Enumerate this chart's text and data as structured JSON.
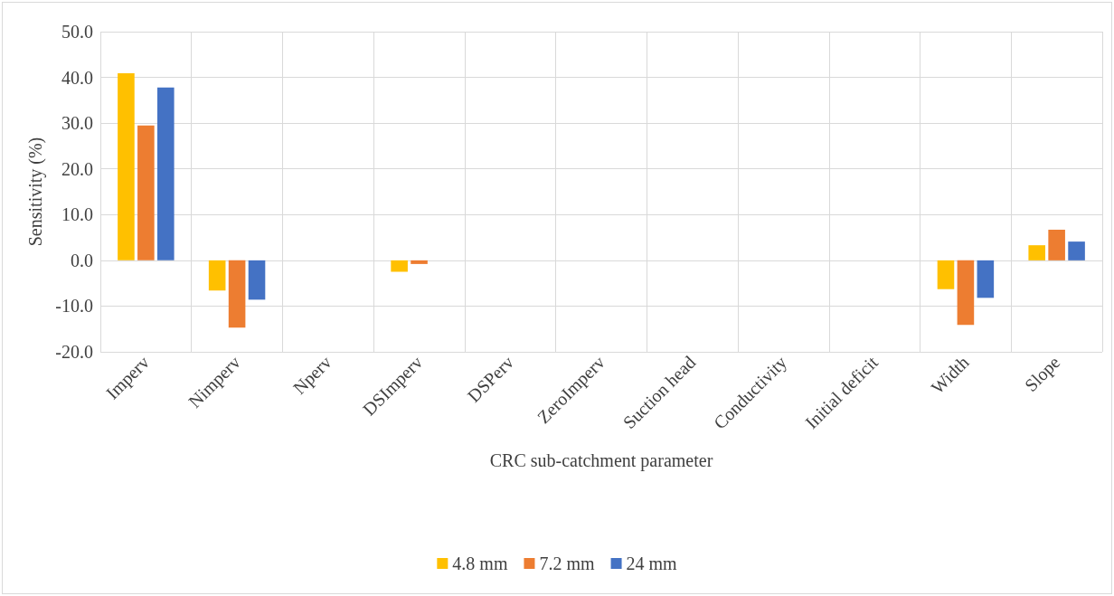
{
  "chart_data": {
    "type": "bar",
    "xlabel": "CRC sub-catchment parameter",
    "ylabel": "Sensitivity (%)",
    "categories": [
      "Imperv",
      "Nimperv",
      "Nperv",
      "DSImperv",
      "DSPerv",
      "ZeroImperv",
      "Suction head",
      "Conductivity",
      "Initial deficit",
      "Width",
      "Slope"
    ],
    "series": [
      {
        "name": "4.8 mm",
        "color": "#ffc000",
        "values": [
          40.9,
          -6.6,
          0,
          -2.5,
          0,
          0,
          0,
          0,
          0,
          -6.3,
          3.3
        ]
      },
      {
        "name": "7.2 mm",
        "color": "#ed7d31",
        "values": [
          29.5,
          -14.7,
          0,
          -0.8,
          0,
          0,
          0,
          0,
          0,
          -14.1,
          6.7
        ]
      },
      {
        "name": "24 mm",
        "color": "#4472c4",
        "values": [
          37.8,
          -8.6,
          0,
          0,
          0,
          0,
          0,
          0,
          0,
          -8.2,
          4.1
        ]
      }
    ],
    "ylim": [
      -20,
      50
    ],
    "yticks": [
      {
        "value": -20,
        "label": "-20.0"
      },
      {
        "value": -10,
        "label": "-10.0"
      },
      {
        "value": 0,
        "label": "0.0"
      },
      {
        "value": 10,
        "label": "10.0"
      },
      {
        "value": 20,
        "label": "20.0"
      },
      {
        "value": 30,
        "label": "30.0"
      },
      {
        "value": 40,
        "label": "40.0"
      },
      {
        "value": 50,
        "label": "50.0"
      }
    ],
    "grid": true,
    "legend": "bottom"
  }
}
